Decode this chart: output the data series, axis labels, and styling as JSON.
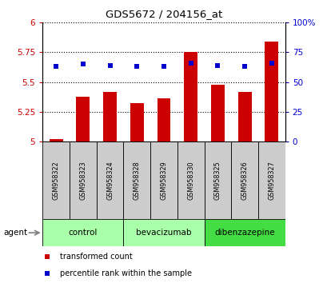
{
  "title": "GDS5672 / 204156_at",
  "samples": [
    "GSM958322",
    "GSM958323",
    "GSM958324",
    "GSM958328",
    "GSM958329",
    "GSM958330",
    "GSM958325",
    "GSM958326",
    "GSM958327"
  ],
  "bar_values": [
    5.02,
    5.38,
    5.42,
    5.32,
    5.36,
    5.75,
    5.48,
    5.42,
    5.84
  ],
  "dot_values": [
    63,
    65,
    64,
    63,
    63,
    66,
    64,
    63,
    66
  ],
  "bar_color": "#cc0000",
  "dot_color": "#0000cc",
  "ylim_left": [
    5.0,
    6.0
  ],
  "ylim_right": [
    0,
    100
  ],
  "yticks_left": [
    5.0,
    5.25,
    5.5,
    5.75,
    6.0
  ],
  "yticks_right": [
    0,
    25,
    50,
    75,
    100
  ],
  "ytick_labels_left": [
    "5",
    "5.25",
    "5.5",
    "5.75",
    "6"
  ],
  "ytick_labels_right": [
    "0",
    "25",
    "50",
    "75",
    "100%"
  ],
  "groups": [
    {
      "label": "control",
      "start": 0,
      "end": 2,
      "color": "#aaffaa"
    },
    {
      "label": "bevacizumab",
      "start": 3,
      "end": 5,
      "color": "#aaffaa"
    },
    {
      "label": "dibenzazepine",
      "start": 6,
      "end": 8,
      "color": "#44dd44"
    }
  ],
  "agent_label": "agent",
  "legend_bar_label": "transformed count",
  "legend_dot_label": "percentile rank within the sample",
  "bar_bottom": 5.0,
  "gridline_color": "#000000",
  "bg_color_sample_row": "#cccccc"
}
